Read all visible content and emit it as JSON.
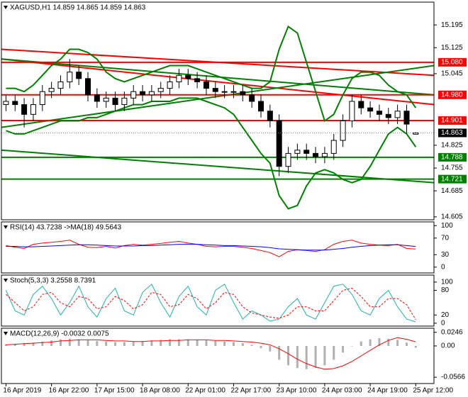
{
  "chart_data": [
    {
      "type": "candlestick",
      "title": "XAGUSD,H1  14.859 14.865 14.859 14.863",
      "xlim": [
        -0.5,
        47
      ],
      "xticks": [
        {
          "value": 0,
          "label": "16 Apr 2019"
        },
        {
          "value": 5,
          "label": "16 Apr 22:00"
        },
        {
          "value": 10,
          "label": "17 Apr 15:00"
        },
        {
          "value": 15,
          "label": "18 Apr 08:00"
        },
        {
          "value": 20,
          "label": "22 Apr 01:00"
        },
        {
          "value": 25,
          "label": "22 Apr 17:00"
        },
        {
          "value": 30,
          "label": "23 Apr 10:00"
        },
        {
          "value": 35,
          "label": "24 Apr 03:00"
        },
        {
          "value": 40,
          "label": "24 Apr 19:00"
        },
        {
          "value": 45,
          "label": "25 Apr 12:00"
        }
      ],
      "ylim": [
        14.596,
        15.265
      ],
      "yticks": [
        15.195,
        15.125,
        15.045,
        14.825,
        14.755,
        14.685,
        14.605
      ],
      "open": [
        14.95,
        14.96,
        14.95,
        14.92,
        14.95,
        14.99,
        15.0,
        15.02,
        15.05,
        15.03,
        14.98,
        14.96,
        14.97,
        14.95,
        14.97,
        14.99,
        14.98,
        14.99,
        15.0,
        15.02,
        15.04,
        15.03,
        15.02,
        15.0,
        14.99,
        14.99,
        14.99,
        14.98,
        14.96,
        14.93,
        14.9,
        14.76,
        14.8,
        14.81,
        14.8,
        14.79,
        14.8,
        14.84,
        14.9,
        14.96,
        14.94,
        14.93,
        14.92,
        14.91,
        14.93,
        14.859
      ],
      "high": [
        14.98,
        14.98,
        14.97,
        14.97,
        15.01,
        15.02,
        15.04,
        15.09,
        15.07,
        15.05,
        15.0,
        14.99,
        14.99,
        14.99,
        15.01,
        15.01,
        15.01,
        15.02,
        15.04,
        15.06,
        15.06,
        15.05,
        15.04,
        15.02,
        15.01,
        15.01,
        15.01,
        15.0,
        14.98,
        14.95,
        14.92,
        14.82,
        14.83,
        14.83,
        14.82,
        14.82,
        14.86,
        14.92,
        14.98,
        14.98,
        14.96,
        14.95,
        14.94,
        14.95,
        14.95,
        14.865
      ],
      "low": [
        14.93,
        14.93,
        14.88,
        14.9,
        14.93,
        14.97,
        14.98,
        15.0,
        15.01,
        14.96,
        14.94,
        14.94,
        14.93,
        14.93,
        14.95,
        14.96,
        14.96,
        14.97,
        14.98,
        15.0,
        15.01,
        15.0,
        14.98,
        14.97,
        14.97,
        14.97,
        14.96,
        14.94,
        14.91,
        14.88,
        14.73,
        14.74,
        14.78,
        14.78,
        14.77,
        14.77,
        14.78,
        14.82,
        14.88,
        14.92,
        14.91,
        14.9,
        14.89,
        14.89,
        14.86,
        14.859
      ],
      "close": [
        14.96,
        14.95,
        14.92,
        14.95,
        14.99,
        15.0,
        15.02,
        15.05,
        15.03,
        14.98,
        14.96,
        14.97,
        14.95,
        14.97,
        14.99,
        14.98,
        14.99,
        15.0,
        15.02,
        15.04,
        15.03,
        15.02,
        15.0,
        14.99,
        14.99,
        14.99,
        14.98,
        14.96,
        14.93,
        14.9,
        14.76,
        14.8,
        14.81,
        14.8,
        14.79,
        14.8,
        14.84,
        14.9,
        14.96,
        14.94,
        14.93,
        14.92,
        14.91,
        14.93,
        14.89,
        14.863
      ],
      "series": [
        {
          "color": "#008000",
          "style": "line",
          "values": [
            15.0,
            15.0,
            14.99,
            15.01,
            15.04,
            15.07,
            15.09,
            15.12,
            15.12,
            15.11,
            15.09,
            15.05,
            15.03,
            15.02,
            15.03,
            15.04,
            15.05,
            15.06,
            15.07,
            15.07,
            15.07,
            15.06,
            15.05,
            15.04,
            15.03,
            15.02,
            15.01,
            15.0,
            15.0,
            15.02,
            15.12,
            15.19,
            15.17,
            15.08,
            14.99,
            14.9,
            14.92,
            14.98,
            15.03,
            15.05,
            15.05,
            15.04,
            15.01,
            14.99,
            14.98,
            14.94
          ]
        },
        {
          "color": "#008000",
          "style": "line",
          "values": [
            14.87,
            14.86,
            14.86,
            14.87,
            14.88,
            14.89,
            14.9,
            14.9,
            14.9,
            14.91,
            14.91,
            14.92,
            14.93,
            14.94,
            14.95,
            14.95,
            14.96,
            14.96,
            14.96,
            14.97,
            14.97,
            14.97,
            14.96,
            14.95,
            14.94,
            14.92,
            14.88,
            14.84,
            14.8,
            14.77,
            14.67,
            14.63,
            14.64,
            14.7,
            14.74,
            14.75,
            14.74,
            14.72,
            14.71,
            14.72,
            14.76,
            14.81,
            14.86,
            14.88,
            14.86,
            14.82
          ]
        }
      ],
      "trendlines": [
        {
          "color": "#ff0000",
          "x": [
            -0.5,
            47
          ],
          "y": [
            15.12,
            15.04
          ]
        },
        {
          "color": "#ff0000",
          "x": [
            -0.5,
            47
          ],
          "y": [
            15.09,
            14.95
          ]
        },
        {
          "color": "#008000",
          "x": [
            -0.5,
            47
          ],
          "y": [
            14.88,
            15.07
          ]
        },
        {
          "color": "#008000",
          "x": [
            -0.5,
            47
          ],
          "y": [
            15.09,
            14.98
          ]
        },
        {
          "color": "#008000",
          "x": [
            -0.5,
            47
          ],
          "y": [
            14.81,
            14.71
          ]
        }
      ],
      "levels": [
        {
          "value": 15.08,
          "label": "15.080",
          "color": "#ff0000"
        },
        {
          "value": 14.98,
          "label": "14.980",
          "color": "#ff0000"
        },
        {
          "value": 14.901,
          "label": "14.901",
          "color": "#ff0000"
        },
        {
          "value": 14.788,
          "label": "14.788",
          "color": "#008000"
        },
        {
          "value": 14.721,
          "label": "14.721",
          "color": "#008000"
        }
      ],
      "last_price": 14.863
    },
    {
      "type": "line",
      "title": "RSI(14) 43.7238 ->MA(18) 49.5643",
      "ylim": [
        -14,
        109
      ],
      "yticks": [
        100,
        70,
        30,
        0
      ],
      "series": [
        {
          "color": "#ff0000",
          "style": "line",
          "values": [
            52,
            48,
            45,
            55,
            58,
            60,
            62,
            65,
            55,
            48,
            47,
            50,
            46,
            52,
            55,
            53,
            55,
            57,
            60,
            62,
            58,
            55,
            50,
            49,
            50,
            50,
            48,
            45,
            40,
            35,
            25,
            38,
            42,
            40,
            38,
            42,
            55,
            62,
            65,
            58,
            55,
            53,
            52,
            55,
            45,
            43.7238
          ]
        },
        {
          "color": "#0000ff",
          "style": "line",
          "values": [
            50,
            50,
            49,
            49,
            50,
            51,
            52,
            53,
            54,
            54,
            53,
            52,
            51,
            51,
            51,
            52,
            52,
            53,
            54,
            55,
            55,
            55,
            54,
            53,
            52,
            52,
            51,
            50,
            49,
            47,
            44,
            43,
            42,
            41,
            41,
            41,
            43,
            45,
            48,
            50,
            52,
            53,
            54,
            54,
            52,
            49.5643
          ]
        }
      ]
    },
    {
      "type": "line",
      "title": "Stoch(5,3,3) 3.2558 8.7391",
      "ylim": [
        -7,
        117
      ],
      "yticks": [
        100,
        80,
        20,
        0
      ],
      "series": [
        {
          "color": "#20b2aa",
          "style": "line",
          "values": [
            80,
            30,
            20,
            70,
            90,
            60,
            20,
            50,
            90,
            40,
            15,
            60,
            85,
            30,
            20,
            75,
            95,
            50,
            15,
            65,
            90,
            40,
            20,
            80,
            95,
            50,
            10,
            30,
            20,
            5,
            10,
            40,
            60,
            20,
            10,
            50,
            90,
            95,
            70,
            30,
            20,
            60,
            80,
            40,
            10,
            3.2558
          ]
        },
        {
          "color": "#ff0000",
          "style": "dashed",
          "values": [
            70,
            50,
            30,
            40,
            70,
            75,
            50,
            40,
            65,
            60,
            35,
            40,
            65,
            55,
            35,
            45,
            75,
            70,
            40,
            45,
            70,
            60,
            35,
            50,
            75,
            70,
            40,
            25,
            20,
            15,
            12,
            20,
            40,
            40,
            30,
            30,
            55,
            80,
            85,
            65,
            40,
            40,
            60,
            60,
            45,
            8.7391
          ]
        }
      ]
    },
    {
      "type": "line",
      "title": "MACD(12,26,9) -0.0032 0.0075",
      "ylim": [
        -0.068,
        0.032
      ],
      "yticks": [
        0.0246,
        {
          "value": 0,
          "label": "0.00"
        },
        -0.0566
      ],
      "series": [
        {
          "color": "#b0b0b0",
          "style": "bar",
          "values": [
            0.003,
            0.004,
            0.005,
            0.006,
            0.008,
            0.01,
            0.012,
            0.013,
            0.012,
            0.01,
            0.009,
            0.008,
            0.007,
            0.007,
            0.008,
            0.009,
            0.01,
            0.011,
            0.012,
            0.012,
            0.012,
            0.011,
            0.01,
            0.009,
            0.008,
            0.007,
            0.005,
            0.002,
            -0.004,
            -0.01,
            -0.025,
            -0.035,
            -0.04,
            -0.042,
            -0.04,
            -0.035,
            -0.025,
            -0.012,
            0,
            0.008,
            0.012,
            0.014,
            0.013,
            0.011,
            0.006,
            -0.0032
          ]
        },
        {
          "color": "#ff0000",
          "style": "line",
          "values": [
            0.002,
            0.003,
            0.004,
            0.005,
            0.006,
            0.007,
            0.009,
            0.01,
            0.011,
            0.011,
            0.011,
            0.01,
            0.009,
            0.009,
            0.008,
            0.008,
            0.009,
            0.009,
            0.01,
            0.01,
            0.011,
            0.011,
            0.011,
            0.01,
            0.01,
            0.009,
            0.008,
            0.007,
            0.005,
            0.002,
            -0.005,
            -0.014,
            -0.024,
            -0.032,
            -0.038,
            -0.042,
            -0.041,
            -0.036,
            -0.028,
            -0.018,
            -0.008,
            0.002,
            0.01,
            0.015,
            0.012,
            0.0075
          ]
        }
      ]
    }
  ]
}
